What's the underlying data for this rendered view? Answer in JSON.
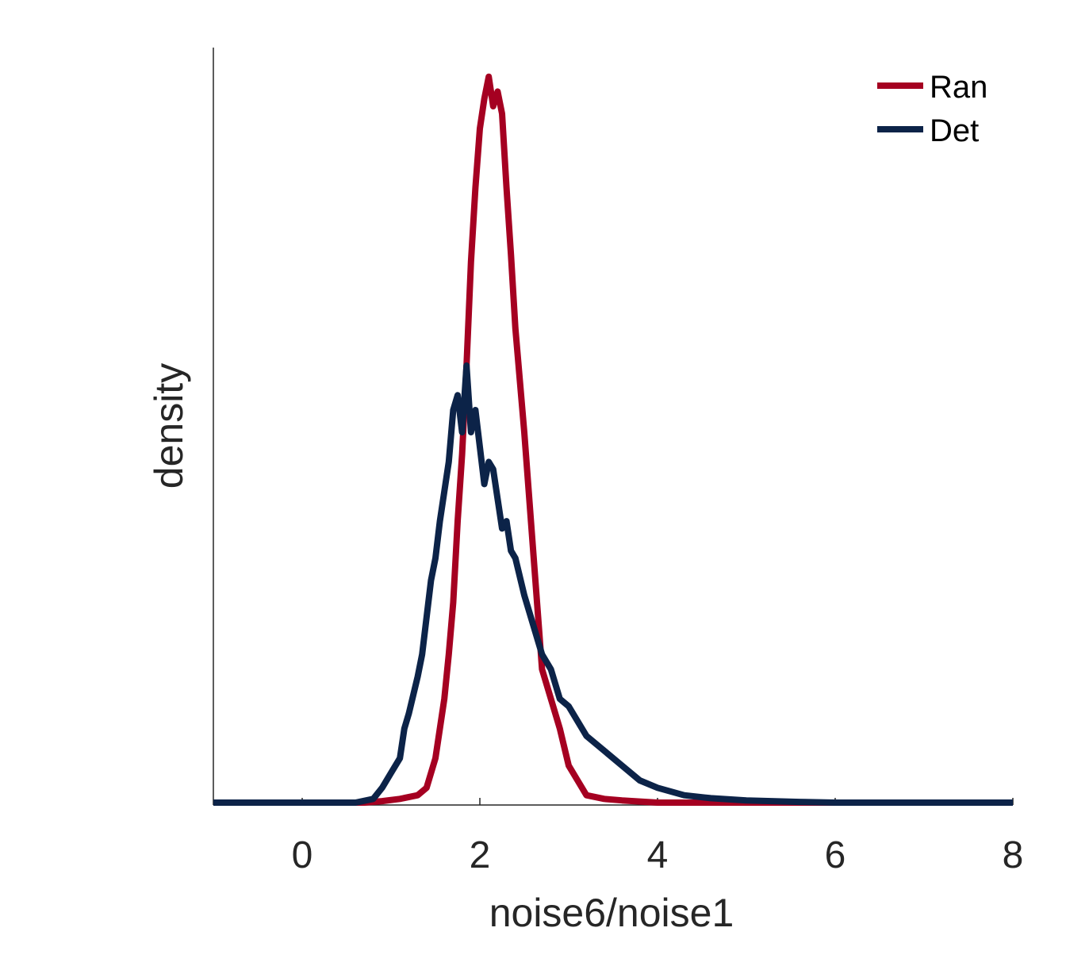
{
  "chart_data": {
    "type": "line",
    "title": "",
    "xlabel": "noise6/noise1",
    "ylabel": "density",
    "xlim": [
      -1,
      8
    ],
    "ylim": [
      0,
      1.0
    ],
    "xticks": [
      0,
      2,
      4,
      6,
      8
    ],
    "x_tick_labels": [
      "0",
      "2",
      "4",
      "6",
      "8"
    ],
    "yticks_shown": false,
    "grid": false,
    "legend_position": "top-right",
    "series": [
      {
        "name": "Ran",
        "color": "#a50021",
        "x": [
          -1.0,
          0.7,
          0.9,
          1.1,
          1.3,
          1.4,
          1.5,
          1.55,
          1.6,
          1.65,
          1.7,
          1.75,
          1.8,
          1.85,
          1.9,
          1.95,
          2.0,
          2.05,
          2.1,
          2.15,
          2.2,
          2.25,
          2.3,
          2.35,
          2.4,
          2.45,
          2.5,
          2.55,
          2.6,
          2.65,
          2.7,
          2.8,
          2.9,
          3.0,
          3.1,
          3.2,
          3.4,
          3.6,
          4.0,
          8.0
        ],
        "y": [
          0.0,
          0.0,
          0.002,
          0.005,
          0.01,
          0.02,
          0.06,
          0.1,
          0.14,
          0.2,
          0.27,
          0.38,
          0.47,
          0.59,
          0.73,
          0.83,
          0.91,
          0.95,
          0.98,
          0.94,
          0.96,
          0.93,
          0.83,
          0.74,
          0.64,
          0.57,
          0.5,
          0.42,
          0.34,
          0.26,
          0.18,
          0.14,
          0.1,
          0.05,
          0.03,
          0.01,
          0.005,
          0.003,
          0.0,
          0.0
        ]
      },
      {
        "name": "Det",
        "color": "#0c2348",
        "x": [
          -1.0,
          0.6,
          0.8,
          0.9,
          1.0,
          1.1,
          1.15,
          1.2,
          1.3,
          1.35,
          1.4,
          1.45,
          1.5,
          1.55,
          1.6,
          1.65,
          1.7,
          1.75,
          1.8,
          1.85,
          1.9,
          1.95,
          2.0,
          2.05,
          2.1,
          2.15,
          2.2,
          2.25,
          2.3,
          2.35,
          2.4,
          2.5,
          2.6,
          2.7,
          2.8,
          2.9,
          3.0,
          3.2,
          3.4,
          3.6,
          3.8,
          4.0,
          4.3,
          4.6,
          5.0,
          5.6,
          6.0,
          8.0
        ],
        "y": [
          0.0,
          0.0,
          0.005,
          0.02,
          0.04,
          0.06,
          0.1,
          0.12,
          0.17,
          0.2,
          0.25,
          0.3,
          0.33,
          0.38,
          0.42,
          0.46,
          0.53,
          0.55,
          0.5,
          0.59,
          0.5,
          0.53,
          0.48,
          0.43,
          0.46,
          0.45,
          0.41,
          0.37,
          0.38,
          0.34,
          0.33,
          0.28,
          0.24,
          0.2,
          0.18,
          0.14,
          0.13,
          0.09,
          0.07,
          0.05,
          0.03,
          0.02,
          0.01,
          0.006,
          0.003,
          0.001,
          0.0,
          0.0
        ]
      }
    ]
  }
}
